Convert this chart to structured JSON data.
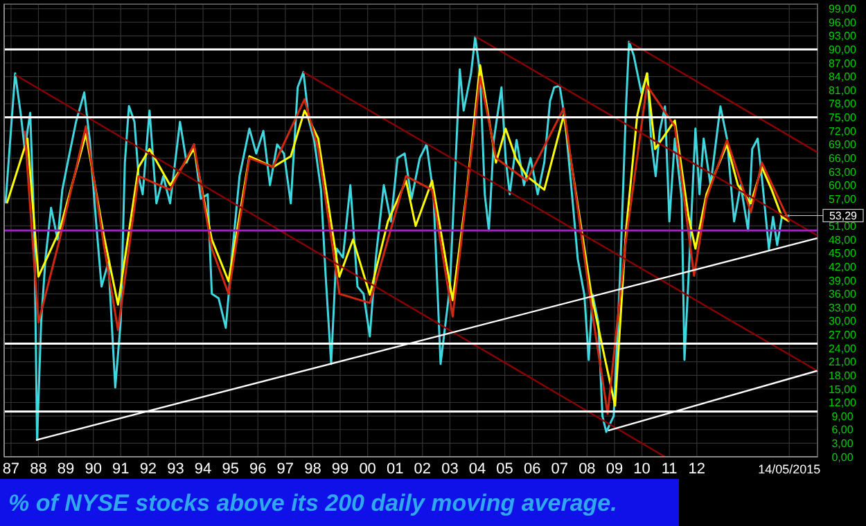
{
  "chart_data": {
    "type": "line",
    "title": "% of NYSE stocks above its 200 daily moving average.",
    "xlim": [
      1986.75,
      2016.4
    ],
    "xticks": [
      {
        "value": 1987,
        "label": "87"
      },
      {
        "value": 1988,
        "label": "88"
      },
      {
        "value": 1989,
        "label": "89"
      },
      {
        "value": 1990,
        "label": "90"
      },
      {
        "value": 1991,
        "label": "91"
      },
      {
        "value": 1992,
        "label": "92"
      },
      {
        "value": 1993,
        "label": "93"
      },
      {
        "value": 1994,
        "label": "94"
      },
      {
        "value": 1995,
        "label": "95"
      },
      {
        "value": 1996,
        "label": "96"
      },
      {
        "value": 1997,
        "label": "97"
      },
      {
        "value": 1998,
        "label": "98"
      },
      {
        "value": 1999,
        "label": "99"
      },
      {
        "value": 2000,
        "label": "00"
      },
      {
        "value": 2001,
        "label": "01"
      },
      {
        "value": 2002,
        "label": "02"
      },
      {
        "value": 2003,
        "label": "03"
      },
      {
        "value": 2004,
        "label": "04"
      },
      {
        "value": 2005,
        "label": "05"
      },
      {
        "value": 2006,
        "label": "06"
      },
      {
        "value": 2007,
        "label": "07"
      },
      {
        "value": 2008,
        "label": "08"
      },
      {
        "value": 2009,
        "label": "09"
      },
      {
        "value": 2010,
        "label": "10"
      },
      {
        "value": 2011,
        "label": "11"
      },
      {
        "value": 2012,
        "label": "12"
      },
      {
        "value": 2015.37,
        "label": "14/05/2015"
      }
    ],
    "ylim": [
      0,
      100
    ],
    "yticks": [
      {
        "value": 0,
        "label": "0,00"
      },
      {
        "value": 3,
        "label": "3,00"
      },
      {
        "value": 6,
        "label": "6,00"
      },
      {
        "value": 9,
        "label": "9,00"
      },
      {
        "value": 12,
        "label": "12,00"
      },
      {
        "value": 15,
        "label": "15,00"
      },
      {
        "value": 18,
        "label": "18,00"
      },
      {
        "value": 21,
        "label": "21,00"
      },
      {
        "value": 24,
        "label": "24,00"
      },
      {
        "value": 27,
        "label": "27,00"
      },
      {
        "value": 30,
        "label": "30,00"
      },
      {
        "value": 33,
        "label": "33,00"
      },
      {
        "value": 36,
        "label": "36,00"
      },
      {
        "value": 39,
        "label": "39,00"
      },
      {
        "value": 42,
        "label": "42,00"
      },
      {
        "value": 45,
        "label": "45,00"
      },
      {
        "value": 48,
        "label": "48,00"
      },
      {
        "value": 51,
        "label": "51,00"
      },
      {
        "value": 54,
        "label": null
      },
      {
        "value": 57,
        "label": "57,00"
      },
      {
        "value": 60,
        "label": "60,00"
      },
      {
        "value": 63,
        "label": "63,00"
      },
      {
        "value": 66,
        "label": "66,00"
      },
      {
        "value": 69,
        "label": "69,00"
      },
      {
        "value": 72,
        "label": "72,00"
      },
      {
        "value": 75,
        "label": "75,00"
      },
      {
        "value": 78,
        "label": "78,00"
      },
      {
        "value": 81,
        "label": "81,00"
      },
      {
        "value": 84,
        "label": "84,00"
      },
      {
        "value": 87,
        "label": "87,00"
      },
      {
        "value": 90,
        "label": "90,00"
      },
      {
        "value": 93,
        "label": "93,00"
      },
      {
        "value": 96,
        "label": "96,00"
      },
      {
        "value": 99,
        "label": "99,00"
      }
    ],
    "grid": true,
    "ref_lines": [
      {
        "axis": "y",
        "value": 10,
        "color": "#ffffff"
      },
      {
        "axis": "y",
        "value": 25,
        "color": "#ffffff"
      },
      {
        "axis": "y",
        "value": 50,
        "color": "#a020c0"
      },
      {
        "axis": "y",
        "value": 75,
        "color": "#ffffff"
      },
      {
        "axis": "y",
        "value": 90,
        "color": "#ffffff"
      }
    ],
    "annotations": [
      {
        "text": "53,29",
        "x": 2015.37,
        "y": 53.29
      }
    ],
    "series": [
      {
        "color": "#40d8e0",
        "x": [
          1986.8,
          1987.15,
          1987.35,
          1987.5,
          1987.7,
          1987.85,
          1987.95,
          1988.1,
          1988.26,
          1988.46,
          1988.7,
          1988.87,
          1989.1,
          1989.37,
          1989.67,
          1989.87,
          1990.1,
          1990.3,
          1990.55,
          1990.8,
          1991.0,
          1991.15,
          1991.3,
          1991.5,
          1991.65,
          1991.8,
          1992.05,
          1992.3,
          1992.55,
          1992.8,
          1993.16,
          1993.4,
          1993.67,
          1993.92,
          1994.17,
          1994.32,
          1994.57,
          1994.83,
          1995.08,
          1995.33,
          1995.69,
          1995.94,
          1996.2,
          1996.44,
          1996.7,
          1996.95,
          1997.2,
          1997.45,
          1997.66,
          1997.86,
          1998.05,
          1998.3,
          1998.47,
          1998.67,
          1998.87,
          1999.1,
          1999.37,
          1999.63,
          1999.85,
          2000.08,
          2000.3,
          2000.59,
          2000.85,
          2001.09,
          2001.35,
          2001.6,
          2001.9,
          2002.15,
          2002.4,
          2002.66,
          2003.0,
          2003.36,
          2003.5,
          2003.77,
          2003.92,
          2004.1,
          2004.27,
          2004.42,
          2004.6,
          2004.88,
          2005.03,
          2005.18,
          2005.43,
          2005.7,
          2005.94,
          2006.2,
          2006.44,
          2006.65,
          2006.8,
          2007.0,
          2007.2,
          2007.45,
          2007.66,
          2007.9,
          2008.06,
          2008.2,
          2008.41,
          2008.56,
          2008.7,
          2008.97,
          2009.2,
          2009.42,
          2009.53,
          2009.7,
          2009.98,
          2010.2,
          2010.33,
          2010.5,
          2010.65,
          2010.84,
          2011.0,
          2011.2,
          2011.45,
          2011.55,
          2011.7,
          2011.95,
          2012.1,
          2012.25,
          2012.5,
          2012.86,
          2013.1,
          2013.36,
          2013.6,
          2013.87,
          2014.02,
          2014.22,
          2014.4,
          2014.63,
          2014.78,
          2014.93,
          2015.1,
          2015.37
        ],
        "values": [
          56,
          84.7,
          76,
          68,
          76,
          50,
          3.7,
          30,
          44,
          55,
          48,
          59,
          66,
          74,
          80.5,
          70,
          52,
          37.6,
          43,
          15.3,
          30,
          65,
          77.5,
          74,
          62,
          58,
          76.5,
          56,
          62,
          56,
          74,
          65,
          69,
          57,
          58,
          36,
          35,
          28.5,
          46,
          62,
          72.5,
          67,
          72,
          60,
          69,
          67,
          56,
          81.6,
          85,
          74.3,
          70,
          59,
          40,
          20.5,
          46,
          44,
          60,
          37.6,
          36,
          26.6,
          44,
          60,
          52,
          66,
          67,
          57,
          66,
          69,
          58,
          20.5,
          37.6,
          85.6,
          76.5,
          84.7,
          92.7,
          84.7,
          58,
          50,
          70,
          81.6,
          66,
          58,
          70,
          60,
          66,
          58,
          65,
          78.6,
          81.6,
          82,
          74.3,
          58,
          43.7,
          35.8,
          21.4,
          35.8,
          29.7,
          9,
          5.5,
          9,
          39.8,
          77.4,
          91.7,
          88.7,
          80.4,
          84.7,
          70.3,
          62,
          72,
          77.4,
          52,
          70.3,
          57,
          21.4,
          39.8,
          72.5,
          58,
          70.3,
          60,
          77.4,
          70.3,
          52,
          60,
          50,
          68,
          70.3,
          60,
          45.9,
          53,
          46.8,
          53,
          53.3
        ]
      },
      {
        "color": "#ffff00",
        "x": [
          1986.85,
          1987.6,
          1988.0,
          1988.77,
          1989.73,
          1990.38,
          1990.9,
          1991.65,
          1992.05,
          1992.8,
          1993.67,
          1994.32,
          1994.93,
          1995.69,
          1996.55,
          1997.2,
          1997.7,
          1998.2,
          1998.97,
          1999.47,
          2000.08,
          2000.74,
          2001.4,
          2001.75,
          2002.35,
          2003.1,
          2003.6,
          2004.1,
          2004.68,
          2005.03,
          2005.4,
          2005.8,
          2006.44,
          2007.15,
          2007.55,
          2008.16,
          2008.66,
          2009.02,
          2009.42,
          2009.83,
          2010.18,
          2010.48,
          2011.2,
          2011.7,
          2011.95,
          2012.35,
          2013.1,
          2013.5,
          2013.97,
          2014.37,
          2014.73,
          2015.1,
          2015.37
        ],
        "values": [
          56,
          70.3,
          39.8,
          50,
          71.3,
          49,
          33.6,
          64,
          68,
          60,
          68,
          48,
          38.8,
          66.4,
          64,
          66.4,
          76.5,
          70.3,
          39.8,
          48,
          35.8,
          52,
          61,
          51,
          61,
          34.6,
          58,
          86.5,
          65,
          72.5,
          66,
          62,
          59,
          75.5,
          60,
          35.8,
          21.4,
          11.3,
          50,
          75.5,
          84.7,
          68,
          74.3,
          53,
          46,
          58,
          69,
          60,
          56,
          64,
          59,
          53,
          52
        ]
      },
      {
        "color": "#d02810",
        "x": [
          1987.5,
          1988.0,
          1988.77,
          1989.73,
          1990.38,
          1990.9,
          1991.65,
          1992.8,
          1993.67,
          1994.32,
          1994.93,
          1995.69,
          1996.55,
          1997.7,
          1998.2,
          1998.97,
          2000.08,
          2001.4,
          2002.35,
          2003.1,
          2004.1,
          2004.68,
          2005.8,
          2007.15,
          2008.16,
          2008.75,
          2009.42,
          2010.18,
          2011.2,
          2011.9,
          2012.35,
          2013.1,
          2013.97,
          2014.37,
          2015.37
        ],
        "values": [
          72,
          29.7,
          48,
          73,
          47,
          28,
          62,
          59,
          69,
          46,
          36,
          66,
          64,
          79,
          68,
          36,
          34,
          62,
          59,
          31,
          84,
          66,
          61,
          77,
          33,
          9.5,
          48,
          82,
          73,
          40,
          57,
          70,
          54,
          65,
          52
        ]
      },
      {
        "color": "#8b0000",
        "x": [
          1987.15,
          2010.84
        ],
        "values": [
          84.4,
          0
        ]
      },
      {
        "color": "#8b0000",
        "x": [
          1997.66,
          2016.39
        ],
        "values": [
          85,
          19
        ]
      },
      {
        "color": "#8b0000",
        "x": [
          2003.92,
          2016.39
        ],
        "values": [
          92.9,
          48.9
        ]
      },
      {
        "color": "#8b0000",
        "x": [
          2009.53,
          2016.39
        ],
        "values": [
          91.7,
          67.3
        ]
      },
      {
        "color": "#ffffff",
        "x": [
          1987.91,
          2016.39
        ],
        "values": [
          3.7,
          48.3
        ]
      },
      {
        "color": "#ffffff",
        "x": [
          2008.77,
          2016.39
        ],
        "values": [
          5.8,
          19
        ]
      }
    ]
  }
}
